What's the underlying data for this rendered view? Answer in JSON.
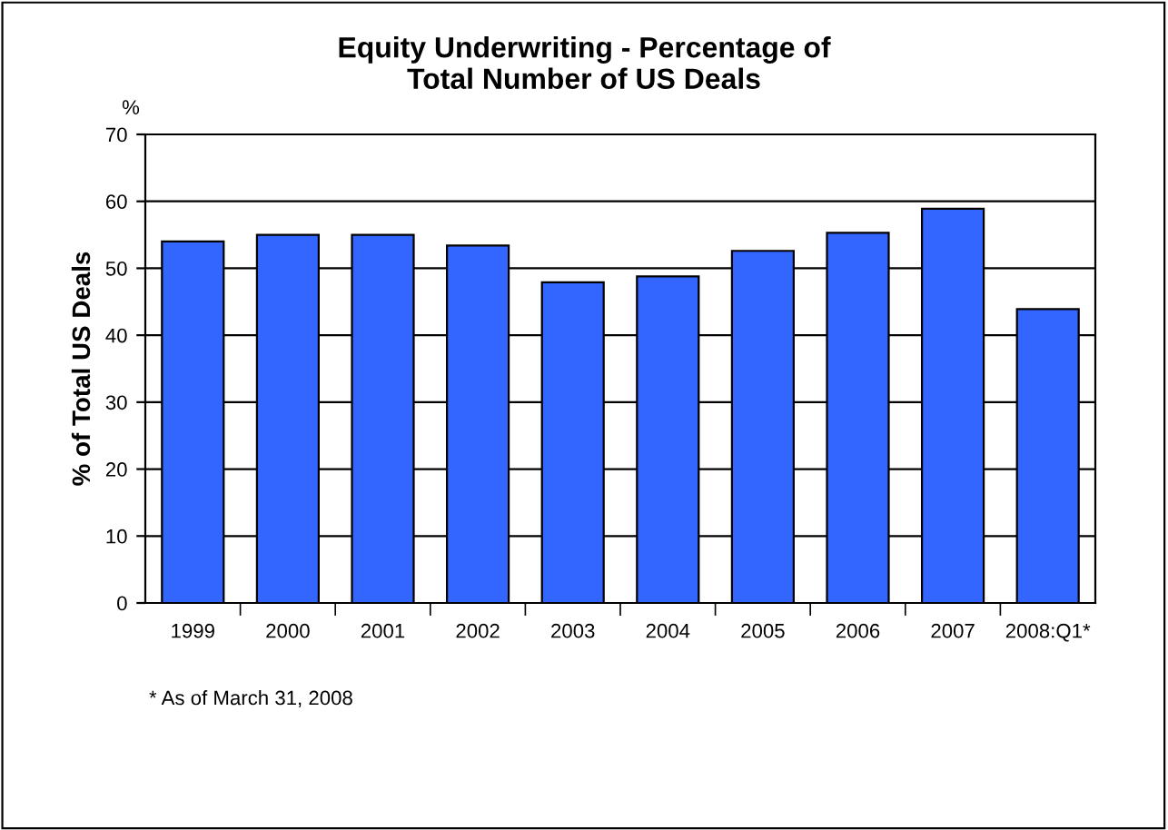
{
  "chart_data": {
    "type": "bar",
    "title": "Equity Underwriting - Percentage of\nTotal Number of US Deals",
    "ylabel": "% of Total US Deals",
    "categories": [
      "1999",
      "2000",
      "2001",
      "2002",
      "2003",
      "2004",
      "2005",
      "2006",
      "2007",
      "2008:Q1*"
    ],
    "values": [
      54.0,
      55.0,
      55.0,
      53.4,
      47.9,
      48.8,
      52.6,
      55.3,
      58.9,
      43.9
    ],
    "color": "#3366ff",
    "ylim": [
      0,
      70
    ],
    "yticks": [
      0,
      10,
      20,
      30,
      40,
      50,
      60,
      70
    ],
    "grid": "y",
    "annotations": [
      "%",
      "* As of March 31, 2008"
    ]
  }
}
